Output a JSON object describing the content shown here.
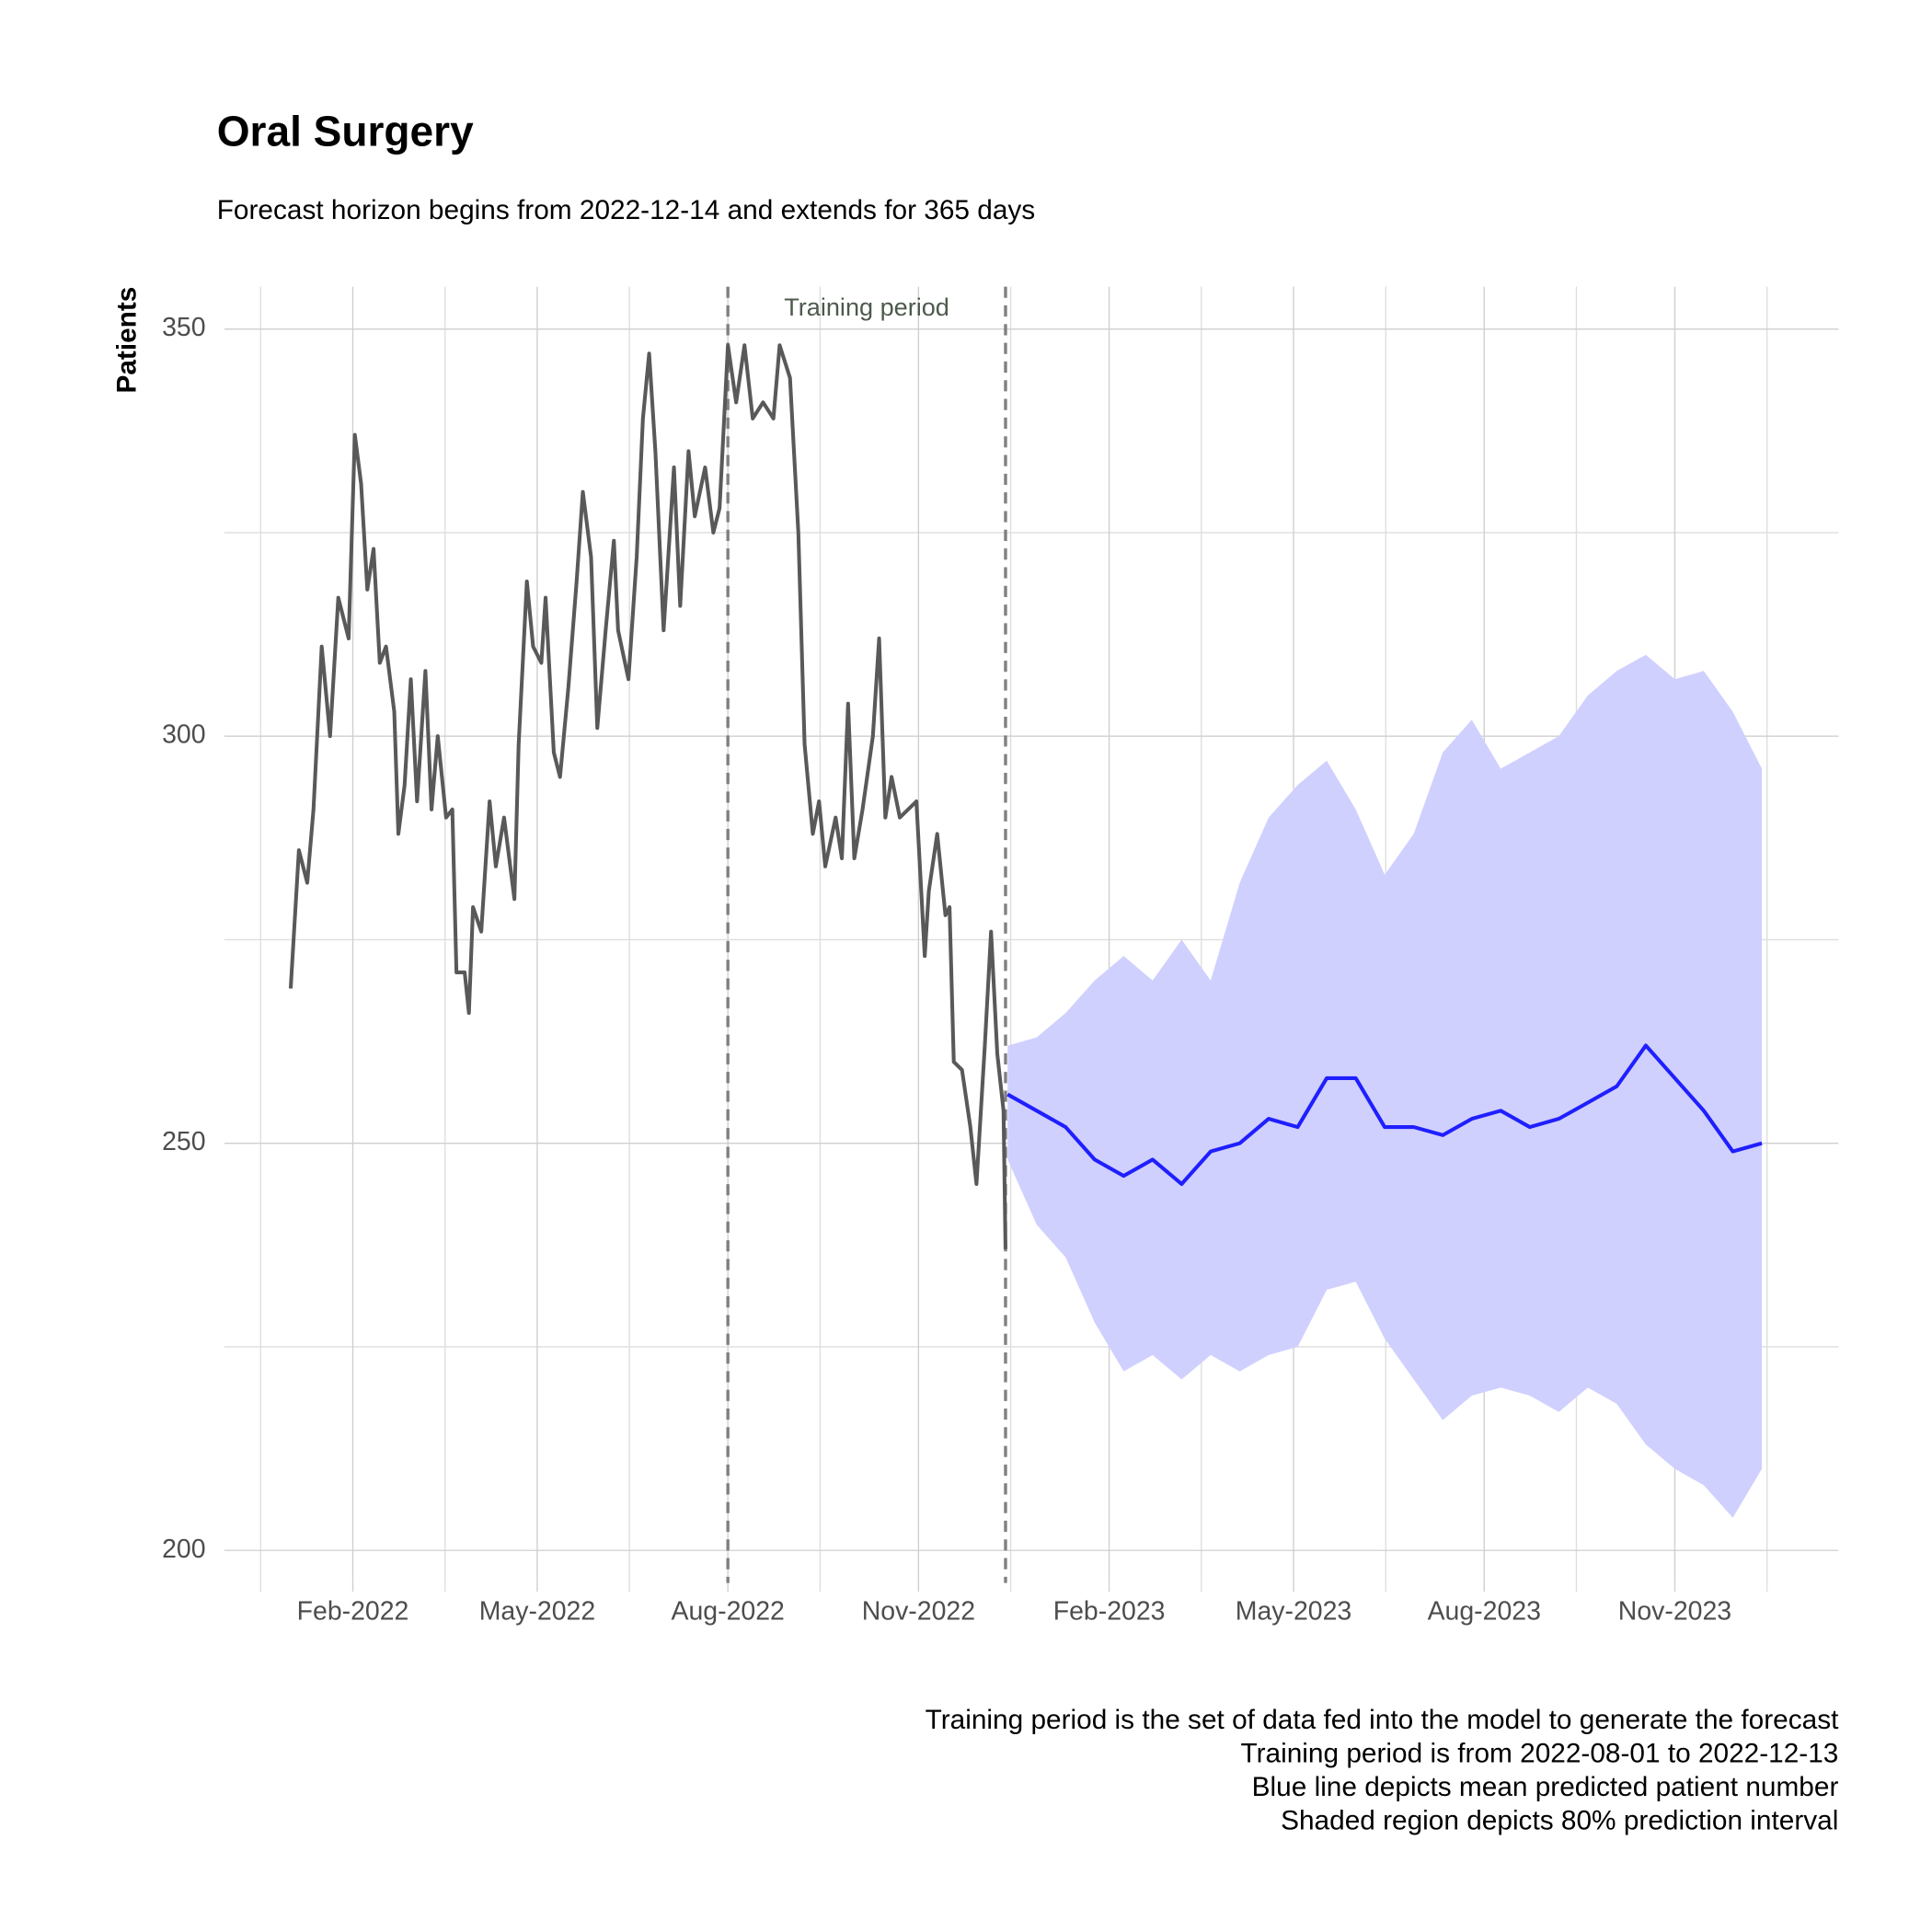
{
  "chart_data": {
    "type": "line",
    "title": "Oral Surgery",
    "subtitle": "Forecast horizon begins from 2022-12-14 and extends for 365 days",
    "y_label": "Patients",
    "annotation": "Training period",
    "caption": [
      "Training period is the set of data fed into the model to generate the forecast",
      "Training period is from 2022-08-01 to 2022-12-13",
      "Blue line depicts mean predicted patient number",
      "Shaded region depicts 80% prediction interval"
    ],
    "grid": true,
    "xlim": [
      "2021-12-01",
      "2024-01-19"
    ],
    "xticks": [
      {
        "value": "2022-02-01",
        "label": "Feb-2022"
      },
      {
        "value": "2022-05-01",
        "label": "May-2022"
      },
      {
        "value": "2022-08-01",
        "label": "Aug-2022"
      },
      {
        "value": "2022-11-01",
        "label": "Nov-2022"
      },
      {
        "value": "2023-02-01",
        "label": "Feb-2023"
      },
      {
        "value": "2023-05-01",
        "label": "May-2023"
      },
      {
        "value": "2023-08-01",
        "label": "Aug-2023"
      },
      {
        "value": "2023-11-01",
        "label": "Nov-2023"
      }
    ],
    "ylim": [
      196,
      355.2
    ],
    "yticks": [
      200,
      250,
      300,
      350
    ],
    "vlines": [
      "2022-08-01",
      "2022-12-13"
    ],
    "vline_color": "#808080",
    "band_color": "#d0d0ff",
    "series": [
      {
        "color": "#595959",
        "x": [
          "2022-01-02",
          "2022-01-06",
          "2022-01-10",
          "2022-01-13",
          "2022-01-17",
          "2022-01-21",
          "2022-01-25",
          "2022-01-30",
          "2022-02-02",
          "2022-02-05",
          "2022-02-08",
          "2022-02-11",
          "2022-02-14",
          "2022-02-17",
          "2022-02-21",
          "2022-02-23",
          "2022-02-26",
          "2022-03-01",
          "2022-03-04",
          "2022-03-08",
          "2022-03-11",
          "2022-03-14",
          "2022-03-18",
          "2022-03-21",
          "2022-03-23",
          "2022-03-27",
          "2022-03-29",
          "2022-03-31",
          "2022-04-04",
          "2022-04-08",
          "2022-04-11",
          "2022-04-15",
          "2022-04-20",
          "2022-04-22",
          "2022-04-26",
          "2022-04-29",
          "2022-05-03",
          "2022-05-05",
          "2022-05-09",
          "2022-05-12",
          "2022-05-16",
          "2022-05-20",
          "2022-05-23",
          "2022-05-27",
          "2022-05-30",
          "2022-06-03",
          "2022-06-07",
          "2022-06-09",
          "2022-06-14",
          "2022-06-18",
          "2022-06-21",
          "2022-06-24",
          "2022-06-27",
          "2022-07-01",
          "2022-07-06",
          "2022-07-09",
          "2022-07-13",
          "2022-07-16",
          "2022-07-21",
          "2022-07-25",
          "2022-07-28",
          "2022-08-01",
          "2022-08-05",
          "2022-08-09",
          "2022-08-13",
          "2022-08-18",
          "2022-08-23",
          "2022-08-26",
          "2022-08-31",
          "2022-09-04",
          "2022-09-07",
          "2022-09-11",
          "2022-09-14",
          "2022-09-17",
          "2022-09-22",
          "2022-09-25",
          "2022-09-28",
          "2022-10-01",
          "2022-10-05",
          "2022-10-10",
          "2022-10-13",
          "2022-10-16",
          "2022-10-19",
          "2022-10-23",
          "2022-10-27",
          "2022-10-31",
          "2022-11-04",
          "2022-11-06",
          "2022-11-10",
          "2022-11-14",
          "2022-11-16",
          "2022-11-18",
          "2022-11-22",
          "2022-11-26",
          "2022-11-29",
          "2022-12-03",
          "2022-12-06",
          "2022-12-09",
          "2022-12-12",
          "2022-12-13"
        ],
        "values": [
          269,
          286,
          282,
          291,
          311,
          300,
          317,
          312,
          337,
          331,
          318,
          323,
          309,
          311,
          303,
          288,
          294,
          307,
          292,
          308,
          291,
          300,
          290,
          291,
          271,
          271,
          266,
          279,
          276,
          292,
          284,
          290,
          280,
          299,
          319,
          311,
          309,
          317,
          298,
          295,
          306,
          319,
          330,
          322,
          301,
          313,
          324,
          313,
          307,
          322,
          339,
          347,
          335,
          313,
          333,
          316,
          335,
          327,
          333,
          325,
          328,
          348,
          341,
          348,
          339,
          341,
          339,
          348,
          344,
          325,
          299,
          288,
          292,
          284,
          290,
          285,
          304,
          285,
          291,
          300,
          312,
          290,
          295,
          290,
          291,
          292,
          273,
          281,
          288,
          278,
          279,
          260,
          259,
          252,
          245,
          262,
          276,
          261,
          254,
          237
        ]
      },
      {
        "color": "#1f1fff",
        "x": [
          "2022-12-14",
          "2022-12-28",
          "2023-01-11",
          "2023-01-25",
          "2023-02-08",
          "2023-02-22",
          "2023-03-08",
          "2023-03-22",
          "2023-04-05",
          "2023-04-19",
          "2023-05-03",
          "2023-05-17",
          "2023-05-31",
          "2023-06-14",
          "2023-06-28",
          "2023-07-12",
          "2023-07-26",
          "2023-08-09",
          "2023-08-23",
          "2023-09-06",
          "2023-09-20",
          "2023-10-04",
          "2023-10-18",
          "2023-11-01",
          "2023-11-15",
          "2023-11-29",
          "2023-12-13"
        ],
        "values": [
          256,
          254,
          252,
          248,
          246,
          248,
          245,
          249,
          250,
          253,
          252,
          258,
          258,
          252,
          252,
          251,
          253,
          254,
          252,
          253,
          255,
          257,
          262,
          258,
          254,
          249,
          250
        ],
        "lower": [
          248,
          240,
          236,
          228,
          222,
          224,
          221,
          224,
          222,
          224,
          225,
          232,
          233,
          226,
          221,
          216,
          219,
          220,
          219,
          217,
          220,
          218,
          213,
          210,
          208,
          204,
          210
        ],
        "upper": [
          262,
          263,
          266,
          270,
          273,
          270,
          275,
          270,
          282,
          290,
          294,
          297,
          291,
          283,
          288,
          298,
          302,
          296,
          298,
          300,
          305,
          308,
          310,
          307,
          308,
          303,
          296
        ]
      }
    ]
  }
}
